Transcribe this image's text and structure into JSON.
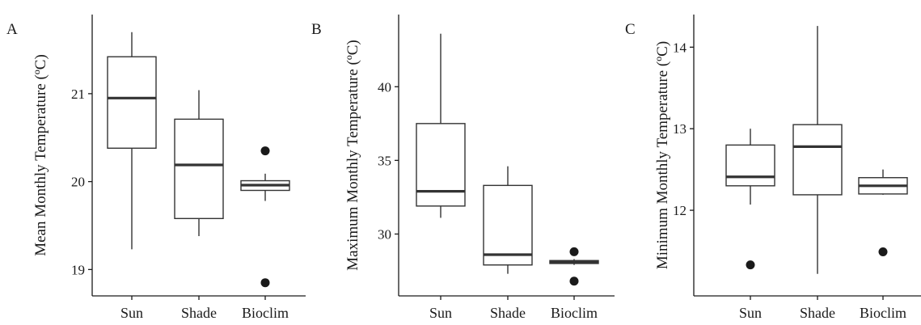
{
  "chart_data": [
    {
      "type": "box",
      "panel_label": "A",
      "ylabel": "Mean Monthly Temperature (ºC)",
      "ylim": [
        18.7,
        21.9
      ],
      "yticks": [
        19,
        20,
        21
      ],
      "categories": [
        "Sun",
        "Shade",
        "Bioclim"
      ],
      "boxes": [
        {
          "category": "Sun",
          "whisker_low": 19.23,
          "q1": 20.38,
          "median": 20.95,
          "q3": 21.42,
          "whisker_high": 21.7,
          "outliers": []
        },
        {
          "category": "Shade",
          "whisker_low": 19.38,
          "q1": 19.58,
          "median": 20.19,
          "q3": 20.71,
          "whisker_high": 21.04,
          "outliers": []
        },
        {
          "category": "Bioclim",
          "whisker_low": 19.78,
          "q1": 19.9,
          "median": 19.96,
          "q3": 20.01,
          "whisker_high": 20.09,
          "outliers": [
            20.35,
            18.85
          ]
        }
      ]
    },
    {
      "type": "box",
      "panel_label": "B",
      "ylabel": "Maximum Monthly Temperature (ºC)",
      "ylim": [
        25.8,
        44.9
      ],
      "yticks": [
        30,
        35,
        40
      ],
      "categories": [
        "Sun",
        "Shade",
        "Bioclim"
      ],
      "boxes": [
        {
          "category": "Sun",
          "whisker_low": 31.1,
          "q1": 31.9,
          "median": 32.9,
          "q3": 37.5,
          "whisker_high": 43.6,
          "outliers": []
        },
        {
          "category": "Shade",
          "whisker_low": 27.3,
          "q1": 27.9,
          "median": 28.6,
          "q3": 33.3,
          "whisker_high": 34.6,
          "outliers": []
        },
        {
          "category": "Bioclim",
          "whisker_low": 27.9,
          "q1": 28.0,
          "median": 28.1,
          "q3": 28.2,
          "whisker_high": 28.3,
          "outliers": [
            28.8,
            26.8
          ]
        }
      ]
    },
    {
      "type": "box",
      "panel_label": "C",
      "ylabel": "Minimum Monthly Temperature (ºC)",
      "ylim": [
        10.95,
        14.4
      ],
      "yticks": [
        12,
        13,
        14
      ],
      "categories": [
        "Sun",
        "Shade",
        "Bioclim"
      ],
      "boxes": [
        {
          "category": "Sun",
          "whisker_low": 12.07,
          "q1": 12.3,
          "median": 12.41,
          "q3": 12.8,
          "whisker_high": 13.0,
          "outliers": [
            11.33
          ]
        },
        {
          "category": "Shade",
          "whisker_low": 11.22,
          "q1": 12.19,
          "median": 12.78,
          "q3": 13.05,
          "whisker_high": 14.26,
          "outliers": []
        },
        {
          "category": "Bioclim",
          "whisker_low": 12.19,
          "q1": 12.2,
          "median": 12.3,
          "q3": 12.4,
          "whisker_high": 12.5,
          "outliers": [
            11.49
          ]
        }
      ]
    }
  ]
}
